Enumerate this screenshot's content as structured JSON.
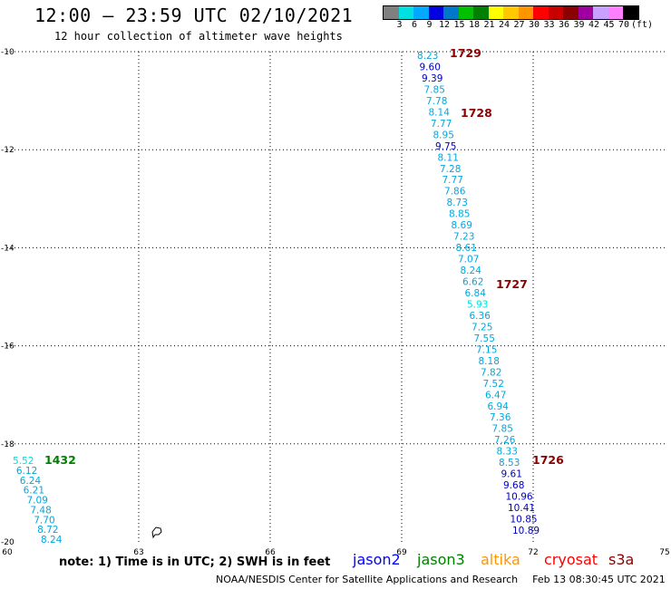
{
  "header": {
    "title": "12:00 – 23:59 UTC 02/10/2021",
    "subtitle": "12 hour collection of altimeter wave heights"
  },
  "legend": {
    "colors": [
      "#808080",
      "#00e0e0",
      "#00a8ff",
      "#0000e0",
      "#0078c8",
      "#00c000",
      "#008000",
      "#ffff00",
      "#ffc800",
      "#ff9600",
      "#ff0000",
      "#c80000",
      "#8b0000",
      "#a000a0",
      "#c8a0ff",
      "#ff80ff",
      "#000000"
    ],
    "labels": [
      "3",
      "6",
      "9",
      "12",
      "15",
      "18",
      "21",
      "24",
      "27",
      "30",
      "33",
      "36",
      "39",
      "42",
      "45",
      "70",
      "(ft)"
    ]
  },
  "map": {
    "lon_min": 60,
    "lon_max": 75,
    "lat_min": -20,
    "lat_max": -10,
    "x_ticks": [
      "60",
      "63",
      "66",
      "69",
      "72",
      "75"
    ],
    "y_ticks": [
      "-10",
      "-12",
      "-14",
      "-16",
      "-18",
      "-20"
    ],
    "tracks": [
      {
        "color": "#00a8e0",
        "points": [
          [
            "8.23",
            "#00a8e0"
          ],
          [
            "9.60",
            "#0000c0"
          ],
          [
            "9.39",
            "#0000c0"
          ],
          [
            "7.85",
            "#00a8e0"
          ],
          [
            "7.78",
            "#00a8e0"
          ],
          [
            "8.14",
            "#00a8e0"
          ],
          [
            "7.77",
            "#00a8e0"
          ],
          [
            "8.95",
            "#00a8e0"
          ],
          [
            "9.75",
            "#0000c0"
          ],
          [
            "8.11",
            "#00a8e0"
          ],
          [
            "7.28",
            "#00a8e0"
          ],
          [
            "7.77",
            "#00a8e0"
          ],
          [
            "7.86",
            "#00a8e0"
          ],
          [
            "8.73",
            "#00a8e0"
          ],
          [
            "8.85",
            "#00a8e0"
          ],
          [
            "8.69",
            "#00a8e0"
          ],
          [
            "7.23",
            "#00a8e0"
          ],
          [
            "8.61",
            "#00a8e0"
          ],
          [
            "7.07",
            "#00a8e0"
          ],
          [
            "8.24",
            "#00a8e0"
          ],
          [
            "6.62",
            "#00a8e0"
          ],
          [
            "6.84",
            "#00a8e0"
          ],
          [
            "5.93",
            "#00e0e0"
          ],
          [
            "6.36",
            "#00a8e0"
          ],
          [
            "7.25",
            "#00a8e0"
          ],
          [
            "7.55",
            "#00a8e0"
          ],
          [
            "7.15",
            "#00a8e0"
          ],
          [
            "8.18",
            "#00a8e0"
          ],
          [
            "7.82",
            "#00a8e0"
          ],
          [
            "7.52",
            "#00a8e0"
          ],
          [
            "6.47",
            "#00a8e0"
          ],
          [
            "6.94",
            "#00a8e0"
          ],
          [
            "7.36",
            "#00a8e0"
          ],
          [
            "7.85",
            "#00a8e0"
          ],
          [
            "7.26",
            "#00a8e0"
          ],
          [
            "8.33",
            "#00a8e0"
          ],
          [
            "8.53",
            "#00a8e0"
          ],
          [
            "9.61",
            "#0000c0"
          ],
          [
            "9.68",
            "#0000c0"
          ],
          [
            "10.96",
            "#0000c0"
          ],
          [
            "10.41",
            "#0000c0"
          ],
          [
            "10.85",
            "#0000c0"
          ],
          [
            "10.89",
            "#0000c0"
          ]
        ]
      },
      {
        "color": "#00a8e0",
        "points": [
          [
            "5.52",
            "#00e0e0"
          ],
          [
            "6.12",
            "#00a8e0"
          ],
          [
            "6.24",
            "#00a8e0"
          ],
          [
            "6.21",
            "#00a8e0"
          ],
          [
            "7.09",
            "#00a8e0"
          ],
          [
            "7.48",
            "#00a8e0"
          ],
          [
            "7.70",
            "#00a8e0"
          ],
          [
            "8.72",
            "#00a8e0"
          ],
          [
            "8.24",
            "#00a8e0"
          ]
        ]
      }
    ],
    "orbit_labels": [
      {
        "text": "1729",
        "color": "#8b0000"
      },
      {
        "text": "1728",
        "color": "#8b0000"
      },
      {
        "text": "1727",
        "color": "#8b0000"
      },
      {
        "text": "1726",
        "color": "#8b0000"
      },
      {
        "text": "1432",
        "color": "#008000"
      }
    ]
  },
  "bottom": {
    "note": "note: 1) Time is in UTC; 2) SWH is in feet",
    "satellites": [
      {
        "name": "jason2",
        "color": "#0000ff"
      },
      {
        "name": "jason3",
        "color": "#008000"
      },
      {
        "name": "altika",
        "color": "#ff9600"
      },
      {
        "name": "cryosat",
        "color": "#ff0000"
      },
      {
        "name": "s3a",
        "color": "#8b0000"
      }
    ],
    "credit": "NOAA/NESDIS Center for Satellite Applications and Research",
    "timestamp": "Feb 13 08:30:45 UTC 2021"
  }
}
